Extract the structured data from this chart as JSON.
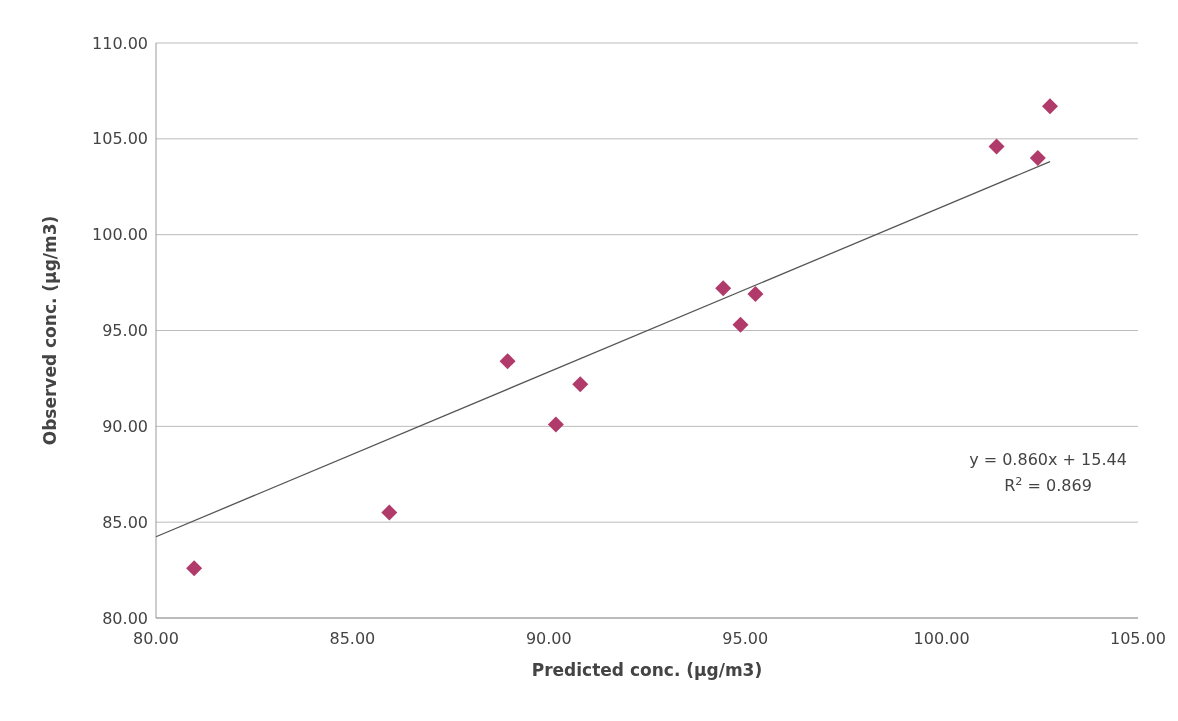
{
  "chart_data": {
    "type": "scatter",
    "xlabel": "Predicted conc. (µg/m3)",
    "ylabel": "Observed conc. (µg/m3)",
    "x": [
      80.97,
      85.94,
      88.95,
      90.18,
      90.8,
      94.44,
      94.88,
      95.26,
      101.4,
      102.45,
      102.76
    ],
    "series": [
      {
        "color": "#b03a6a",
        "marker": "diamond",
        "values": [
          82.6,
          85.5,
          93.4,
          90.1,
          92.2,
          97.2,
          95.3,
          96.9,
          104.6,
          104.0,
          106.7
        ]
      },
      {
        "type": "line",
        "color": "#555555",
        "marker": "none",
        "line_style": "solid",
        "x": [
          80,
          102.76
        ],
        "values": [
          84.24,
          103.81
        ]
      }
    ],
    "xlim": [
      80,
      105
    ],
    "ylim": [
      80,
      110
    ],
    "xticks": [
      {
        "value": 80,
        "label": "80.00"
      },
      {
        "value": 85,
        "label": "85.00"
      },
      {
        "value": 90,
        "label": "90.00"
      },
      {
        "value": 95,
        "label": "95.00"
      },
      {
        "value": 100,
        "label": "100.00"
      },
      {
        "value": 105,
        "label": "105.00"
      }
    ],
    "yticks": [
      {
        "value": 80,
        "label": "80.00"
      },
      {
        "value": 85,
        "label": "85.00"
      },
      {
        "value": 90,
        "label": "90.00"
      },
      {
        "value": 95,
        "label": "95.00"
      },
      {
        "value": 100,
        "label": "100.00"
      },
      {
        "value": 105,
        "label": "105.00"
      },
      {
        "value": 110,
        "label": "110.00"
      }
    ],
    "grid": "y",
    "annotations": [
      "y = 0.860x + 15.44",
      "R$^{2}$ = 0.869"
    ]
  }
}
